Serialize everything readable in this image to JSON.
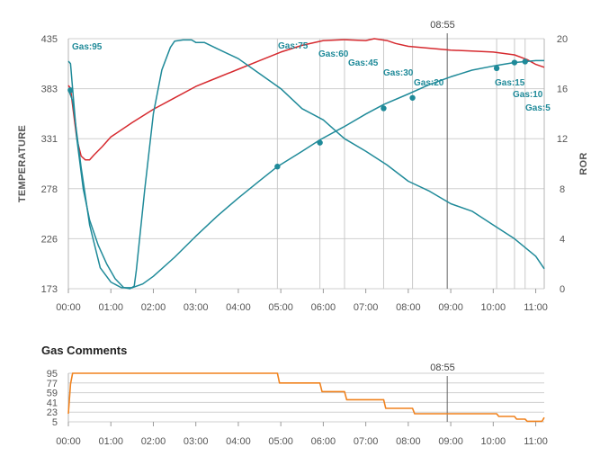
{
  "chart_data": [
    {
      "type": "line",
      "title": "",
      "ylabel": "TEMPERATURE",
      "y2label": "ROR",
      "xlim": [
        0,
        11.2
      ],
      "ylim": [
        173,
        435
      ],
      "y2lim": [
        0,
        20
      ],
      "x_ticks": [
        "00:00",
        "01:00",
        "02:00",
        "03:00",
        "04:00",
        "05:00",
        "06:00",
        "07:00",
        "08:00",
        "09:00",
        "10:00",
        "11:00"
      ],
      "y_ticks": [
        "173",
        "226",
        "278",
        "331",
        "383",
        "435"
      ],
      "y2_ticks": [
        "0",
        "4",
        "8",
        "12",
        "16",
        "20"
      ],
      "cursor_label": "08:55",
      "cursor_x": 8.917,
      "colors": {
        "temperature": "#d62a2f",
        "bean_temp": "#1f8a99",
        "ror": "#1f8a99",
        "grid": "#cfcfcf"
      },
      "series": [
        {
          "axis": "temperature",
          "color": "#d62a2f",
          "x": [
            0.0,
            0.05,
            0.1,
            0.2,
            0.3,
            0.4,
            0.5,
            0.6,
            0.8,
            1.0,
            1.5,
            2.0,
            2.5,
            3.0,
            3.5,
            4.0,
            4.5,
            5.0,
            5.5,
            6.0,
            6.5,
            7.0,
            7.2,
            7.5,
            7.7,
            8.0,
            8.5,
            9.0,
            9.5,
            10.0,
            10.5,
            10.8,
            11.0,
            11.2
          ],
          "y": [
            386,
            383,
            365,
            330,
            312,
            308,
            308,
            313,
            322,
            332,
            347,
            361,
            373,
            385,
            394,
            403,
            412,
            421,
            428,
            433,
            434,
            433,
            435,
            433,
            430,
            427,
            425,
            423,
            422,
            421,
            418,
            413,
            408,
            405
          ]
        },
        {
          "axis": "temperature",
          "color": "#1f8a99",
          "x": [
            0.0,
            0.1,
            0.3,
            0.5,
            0.75,
            1.0,
            1.25,
            1.5,
            1.75,
            2.0,
            2.5,
            3.0,
            3.5,
            4.0,
            4.5,
            4.92,
            5.5,
            5.92,
            6.5,
            7.0,
            7.42,
            8.0,
            8.5,
            9.0,
            9.5,
            10.08,
            10.5,
            10.75,
            11.0,
            11.2
          ],
          "y": [
            382,
            370,
            300,
            240,
            195,
            180,
            174,
            174,
            178,
            186,
            206,
            228,
            249,
            268,
            286,
            301,
            317,
            329,
            343,
            356,
            366,
            377,
            387,
            395,
            402,
            407,
            410,
            411,
            412,
            412
          ],
          "markers": [
            [
              0.05,
              381
            ],
            [
              4.92,
              301
            ],
            [
              5.92,
              326
            ],
            [
              7.42,
              362
            ],
            [
              8.1,
              373
            ],
            [
              10.08,
              404
            ],
            [
              10.5,
              410
            ],
            [
              10.75,
              411
            ]
          ]
        },
        {
          "axis": "ror",
          "color": "#1f8a99",
          "x": [
            0.0,
            0.05,
            0.1,
            0.2,
            0.35,
            0.5,
            0.7,
            0.9,
            1.1,
            1.3,
            1.45,
            1.55,
            1.6,
            1.8,
            2.0,
            2.2,
            2.4,
            2.5,
            2.7,
            2.9,
            3.0,
            3.2,
            3.5,
            4.0,
            4.5,
            5.0,
            5.5,
            6.0,
            6.5,
            7.0,
            7.5,
            8.0,
            8.5,
            9.0,
            9.5,
            10.0,
            10.5,
            11.0,
            11.2
          ],
          "y": [
            18.2,
            18.0,
            16.0,
            12.0,
            8.0,
            5.5,
            3.5,
            2.0,
            0.8,
            0.1,
            0.0,
            0.2,
            1.5,
            8.0,
            14.0,
            17.5,
            19.3,
            19.8,
            19.9,
            19.9,
            19.7,
            19.7,
            19.2,
            18.4,
            17.2,
            16.0,
            14.4,
            13.5,
            12.0,
            11.0,
            9.9,
            8.6,
            7.8,
            6.8,
            6.2,
            5.1,
            4.0,
            2.6,
            1.6
          ]
        }
      ],
      "annotations": [
        "Gas:95",
        "Gas:75",
        "Gas:60",
        "Gas:45",
        "Gas:30",
        "Gas:20",
        "Gas:15",
        "Gas:10",
        "Gas:5"
      ]
    },
    {
      "type": "line",
      "title": "Gas Comments",
      "xlim": [
        0,
        11.2
      ],
      "ylim": [
        5,
        95
      ],
      "x_ticks": [
        "00:00",
        "01:00",
        "02:00",
        "03:00",
        "04:00",
        "05:00",
        "06:00",
        "07:00",
        "08:00",
        "09:00",
        "10:00",
        "11:00"
      ],
      "y_ticks": [
        "95",
        "77",
        "59",
        "41",
        "23",
        "5"
      ],
      "cursor_label": "08:55",
      "cursor_x": 8.917,
      "color": "#f0821e",
      "steps": [
        [
          0.0,
          20
        ],
        [
          0.05,
          75
        ],
        [
          0.1,
          95
        ],
        [
          4.92,
          95
        ],
        [
          4.97,
          77
        ],
        [
          5.92,
          77
        ],
        [
          5.97,
          61
        ],
        [
          6.5,
          61
        ],
        [
          6.55,
          46
        ],
        [
          7.42,
          46
        ],
        [
          7.47,
          30
        ],
        [
          8.1,
          30
        ],
        [
          8.15,
          20
        ],
        [
          10.08,
          20
        ],
        [
          10.13,
          15
        ],
        [
          10.5,
          15
        ],
        [
          10.55,
          10
        ],
        [
          10.75,
          10
        ],
        [
          10.8,
          6
        ],
        [
          11.15,
          6
        ],
        [
          11.2,
          13
        ]
      ]
    }
  ]
}
